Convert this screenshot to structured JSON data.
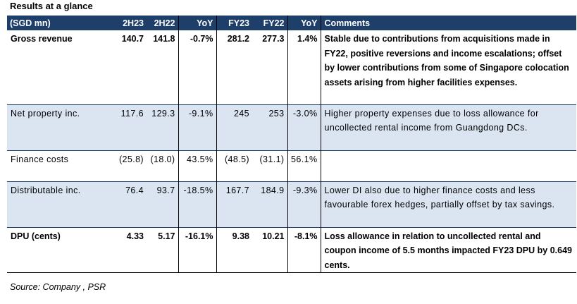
{
  "title": "Results at a glance",
  "table": {
    "headers": [
      "(SGD mn)",
      "2H23",
      "2H22",
      "YoY",
      "FY23",
      "FY22",
      "YoY",
      "Comments"
    ],
    "rows": [
      {
        "label": "Gross revenue",
        "values": [
          "140.7",
          "141.8",
          "-0.7%",
          "281.2",
          "277.3",
          "1.4%"
        ],
        "comment": "Stable due to contributions from acquisitions made in FY22, positive reversions and income escalations; offset by lower contributions from some of Singapore colocation assets arising from higher facilities expenses."
      },
      {
        "label": "Net property inc.",
        "values": [
          "117.6",
          "129.3",
          "-9.1%",
          "245",
          "253",
          "-3.0%"
        ],
        "comment": "Higher property expenses due to loss allowance for uncollected rental income from Guangdong DCs."
      },
      {
        "label": "Finance costs",
        "values": [
          "(25.8)",
          "(18.0)",
          "43.5%",
          "(48.5)",
          "(31.1)",
          "56.1%"
        ],
        "comment": ""
      },
      {
        "label": "Distributable inc.",
        "values": [
          "76.4",
          "93.7",
          "-18.5%",
          "167.7",
          "184.9",
          "-9.3%"
        ],
        "comment": "Lower DI also due to higher finance costs and less favourable forex hedges, partially offset by tax savings."
      },
      {
        "label": "DPU (cents)",
        "values": [
          "4.33",
          "5.17",
          "-16.1%",
          "9.38",
          "10.21",
          "-8.1%"
        ],
        "comment": "Loss allowance in relation to uncollected rental and coupon income of 5.5 months impacted FY23 DPU by 0.649 cents."
      }
    ]
  },
  "source": "Source: Company , PSR",
  "colors": {
    "header_bg": "#1f3f6b",
    "row_shade": "#dbe5f1"
  }
}
